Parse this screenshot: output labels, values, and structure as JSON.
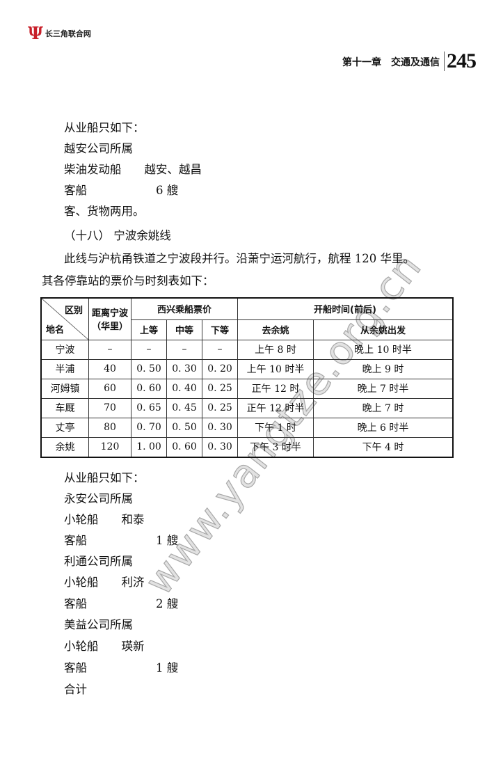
{
  "header": {
    "logo_text": "长三角联合网",
    "chapter": "第十一章　交通及通信",
    "page_number": "245",
    "logo_color": "#c8202a"
  },
  "watermark": "www.yangtze.org.cn",
  "before_table": [
    {
      "text": "从业船只如下："
    },
    {
      "text": "越安公司所属"
    },
    {
      "text": "柴油发动船　　越安、越昌"
    },
    {
      "text": "客船　　　　　　6 艘"
    },
    {
      "text": "客、货物两用。"
    },
    {
      "text": "（十八） 宁波余姚线"
    },
    {
      "text": "此线与沪杭甬铁道之宁波段并行。沿萧宁运河航行，航程 120 华里。"
    },
    {
      "text": "其各停靠站的票价与时刻表如下："
    }
  ],
  "table": {
    "corner_top": "区别",
    "corner_bottom": "地名",
    "distance_header": "距离宁波",
    "distance_unit": "（华里）",
    "fare_header": "西兴乘船票价",
    "fare_classes": [
      "上等",
      "中等",
      "下等"
    ],
    "time_header": "开船时间(前后)",
    "time_columns": [
      "去余姚",
      "从余姚出发"
    ],
    "rows": [
      [
        "宁波",
        "–",
        "–",
        "–",
        "–",
        "上午 8 时",
        "晚上 10 时半"
      ],
      [
        "半浦",
        "40",
        "0. 50",
        "0. 30",
        "0. 20",
        "上午 10 时半",
        "晚上 9 时"
      ],
      [
        "河姆镇",
        "60",
        "0. 60",
        "0. 40",
        "0. 25",
        "正午 12 时",
        "晚上 7 时半"
      ],
      [
        "车厩",
        "70",
        "0. 65",
        "0. 45",
        "0. 25",
        "正午 12 时半",
        "晚上 7 时"
      ],
      [
        "丈亭",
        "80",
        "0. 70",
        "0. 50",
        "0. 30",
        "下午 1 时",
        "晚上 6 时半"
      ],
      [
        "余姚",
        "120",
        "1. 00",
        "0. 60",
        "0. 30",
        "下午 3 时半",
        "下午 4 时"
      ]
    ]
  },
  "after_table": [
    {
      "text": "从业船只如下："
    },
    {
      "text": "永安公司所属"
    },
    {
      "text": "小轮船　　和泰"
    },
    {
      "text": "客船　　　　　　1 艘"
    },
    {
      "text": "利通公司所属"
    },
    {
      "text": "小轮船　　利济"
    },
    {
      "text": "客船　　　　　　2 艘"
    },
    {
      "text": "美益公司所属"
    },
    {
      "text": "小轮船　　瑛新"
    },
    {
      "text": "客船　　　　　　1 艘"
    },
    {
      "text": "合计"
    }
  ]
}
